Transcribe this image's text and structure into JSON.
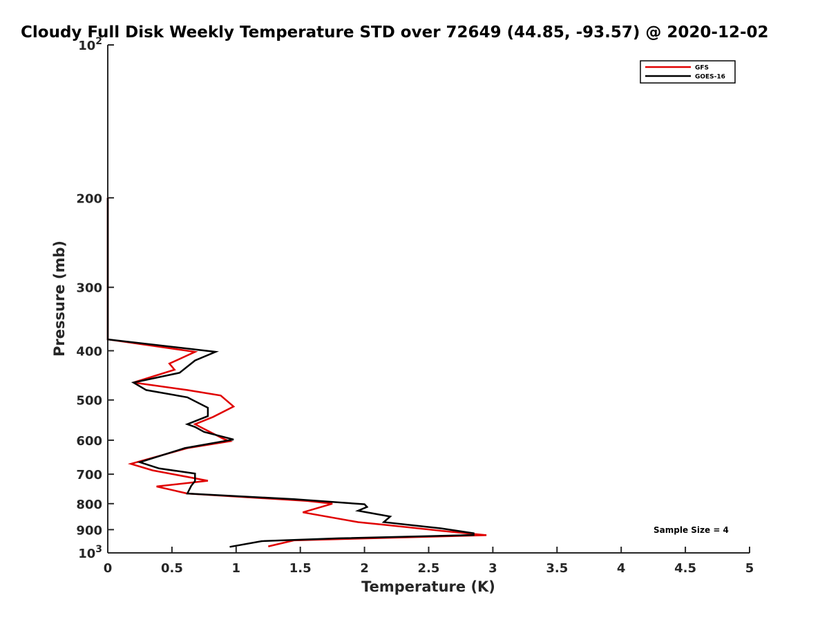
{
  "chart_data": {
    "type": "line",
    "title": "Cloudy Full Disk Weekly Temperature STD over 72649 (44.85, -93.57) @ 2020-12-02",
    "xlabel": "Temperature (K)",
    "ylabel": "Pressure (mb)",
    "xlim": [
      0,
      5
    ],
    "ylim": [
      100,
      1000
    ],
    "y_scale": "log",
    "y_reversed": true,
    "grid": false,
    "legend_position": "top-right",
    "annotation": "Sample Size = 4",
    "x_ticks": [
      {
        "value": 0,
        "label": "0"
      },
      {
        "value": 0.5,
        "label": "0.5"
      },
      {
        "value": 1,
        "label": "1"
      },
      {
        "value": 1.5,
        "label": "1.5"
      },
      {
        "value": 2,
        "label": "2"
      },
      {
        "value": 2.5,
        "label": "2.5"
      },
      {
        "value": 3,
        "label": "3"
      },
      {
        "value": 3.5,
        "label": "3.5"
      },
      {
        "value": 4,
        "label": "4"
      },
      {
        "value": 4.5,
        "label": "4.5"
      },
      {
        "value": 5,
        "label": "5"
      }
    ],
    "y_ticks": [
      {
        "value": 100,
        "label": "10",
        "sup": "2"
      },
      {
        "value": 200,
        "label": "200",
        "sup": ""
      },
      {
        "value": 300,
        "label": "300",
        "sup": ""
      },
      {
        "value": 400,
        "label": "400",
        "sup": ""
      },
      {
        "value": 500,
        "label": "500",
        "sup": ""
      },
      {
        "value": 600,
        "label": "600",
        "sup": ""
      },
      {
        "value": 700,
        "label": "700",
        "sup": ""
      },
      {
        "value": 800,
        "label": "800",
        "sup": ""
      },
      {
        "value": 900,
        "label": "900",
        "sup": ""
      },
      {
        "value": 1000,
        "label": "10",
        "sup": "3"
      }
    ],
    "series": [
      {
        "name": "GFS",
        "color": "#e00000",
        "x": [
          0,
          0,
          0.68,
          0.48,
          0.52,
          0.2,
          0.62,
          0.88,
          0.98,
          0.82,
          0.68,
          0.75,
          0.9,
          0.95,
          0.62,
          0.18,
          0.35,
          0.78,
          0.38,
          0.62,
          1.55,
          1.75,
          1.52,
          1.95,
          2.15,
          2.6,
          2.95,
          1.45,
          1.25
        ],
        "y": [
          200,
          380,
          402,
          424,
          436,
          462,
          478,
          490,
          515,
          540,
          558,
          570,
          596,
          603,
          622,
          668,
          688,
          721,
          740,
          764,
          790,
          800,
          832,
          870,
          880,
          905,
          923,
          945,
          971
        ]
      },
      {
        "name": "GOES-16",
        "color": "#000000",
        "x": [
          0,
          0,
          0.84,
          0.68,
          0.56,
          0.2,
          0.3,
          0.62,
          0.78,
          0.78,
          0.62,
          0.68,
          0.75,
          0.98,
          0.6,
          0.25,
          0.4,
          0.68,
          0.68,
          0.65,
          0.62,
          1.45,
          2,
          2.02,
          1.95,
          2.2,
          2.15,
          2.6,
          2.85,
          2.85,
          1.8,
          1.2,
          0.95
        ],
        "y": [
          200,
          380,
          402,
          418,
          442,
          462,
          478,
          494,
          518,
          538,
          558,
          565,
          578,
          598,
          622,
          663,
          682,
          698,
          722,
          738,
          764,
          784,
          802,
          812,
          826,
          848,
          870,
          895,
          915,
          922,
          936,
          948,
          973
        ]
      }
    ]
  }
}
